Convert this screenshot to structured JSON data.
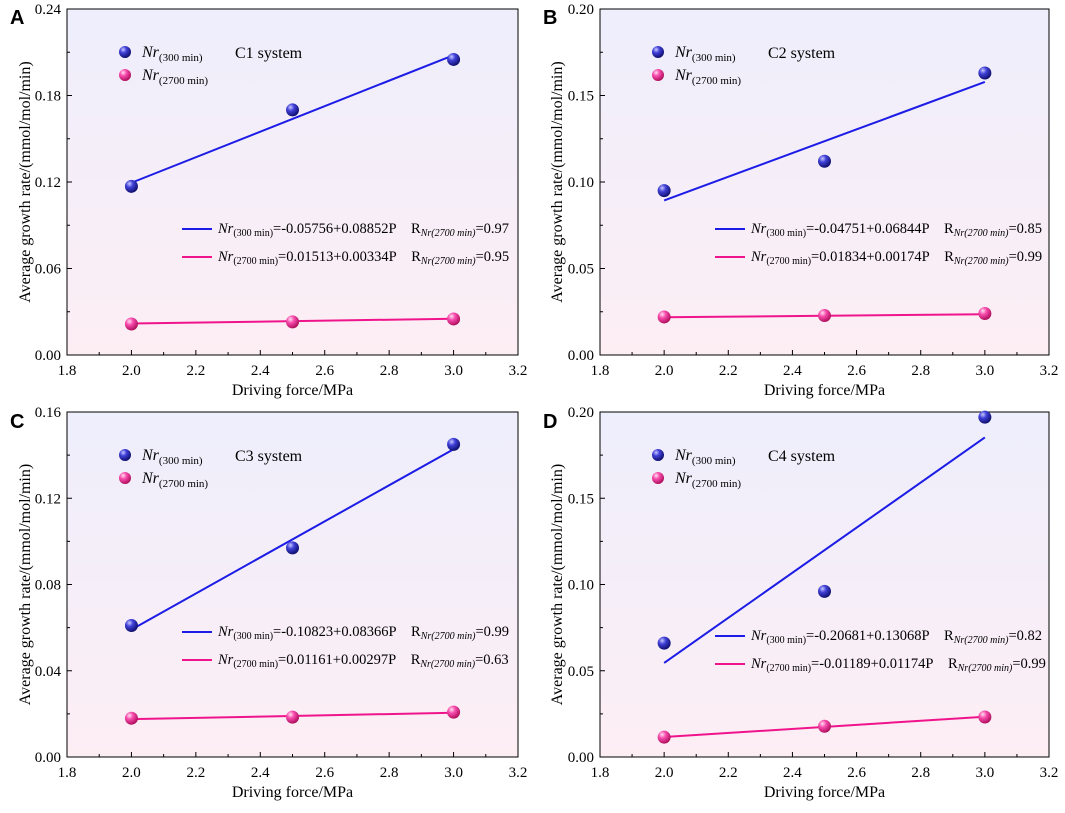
{
  "colors": {
    "blue_line": "#1c1ce6",
    "blue_marker": "#2b2bb8",
    "pink_line": "#f0148c",
    "pink_marker": "#f53ca5",
    "bg_top": "#eeeefc",
    "bg_bottom": "#fdeef4"
  },
  "chart_data": [
    {
      "type": "scatter",
      "panel": "A",
      "system_label": "C1 system",
      "xlabel": "Driving force/MPa",
      "ylabel": "Average growth rate/(mmol/mol/min)",
      "xlim": [
        1.8,
        3.2
      ],
      "ylim": [
        0,
        0.24
      ],
      "xticks": [
        "1.8",
        "2.0",
        "2.2",
        "2.4",
        "2.6",
        "2.8",
        "3.0",
        "3.2"
      ],
      "yticks": [
        "0.00",
        "0.06",
        "0.12",
        "0.18",
        "0.24"
      ],
      "series": [
        {
          "name": "Nr(300 min)",
          "name_main": "Nr",
          "name_sub": "(300 min)",
          "color": "blue",
          "x": [
            2.0,
            2.5,
            3.0
          ],
          "y": [
            0.117,
            0.17,
            0.205
          ],
          "fit": {
            "intercept": -0.05756,
            "slope": 0.08852
          },
          "eq_main": "Nr",
          "eq_sub": "(300 min)",
          "eq_rhs": "=-0.05756+0.08852P",
          "r_main": "R",
          "r_sub": "Nr(2700 min)",
          "r_val": "=0.97"
        },
        {
          "name": "Nr(2700 min)",
          "name_main": "Nr",
          "name_sub": "(2700 min)",
          "color": "pink",
          "x": [
            2.0,
            2.5,
            3.0
          ],
          "y": [
            0.0215,
            0.023,
            0.025
          ],
          "fit": {
            "intercept": 0.01513,
            "slope": 0.00334
          },
          "eq_main": "Nr",
          "eq_sub": "(2700 min)",
          "eq_rhs": "=0.01513+0.00334P",
          "r_main": "R",
          "r_sub": "Nr(2700 min)",
          "r_val": "=0.95"
        }
      ]
    },
    {
      "type": "scatter",
      "panel": "B",
      "system_label": "C2 system",
      "xlabel": "Driving force/MPa",
      "ylabel": "Average growth rate/(mmol/mol/min)",
      "xlim": [
        1.8,
        3.2
      ],
      "ylim": [
        0,
        0.2
      ],
      "xticks": [
        "1.8",
        "2.0",
        "2.2",
        "2.4",
        "2.6",
        "2.8",
        "3.0",
        "3.2"
      ],
      "yticks": [
        "0.00",
        "0.05",
        "0.10",
        "0.15",
        "0.20"
      ],
      "series": [
        {
          "name": "Nr(300 min)",
          "name_main": "Nr",
          "name_sub": "(300 min)",
          "color": "blue",
          "x": [
            2.0,
            2.5,
            3.0
          ],
          "y": [
            0.095,
            0.112,
            0.163
          ],
          "fit": {
            "intercept": -0.04751,
            "slope": 0.06844
          },
          "eq_main": "Nr",
          "eq_sub": "(300 min)",
          "eq_rhs": "=-0.04751+0.06844P",
          "r_main": "R",
          "r_sub": "Nr(2700 min)",
          "r_val": "=0.85"
        },
        {
          "name": "Nr(2700 min)",
          "name_main": "Nr",
          "name_sub": "(2700 min)",
          "color": "pink",
          "x": [
            2.0,
            2.5,
            3.0
          ],
          "y": [
            0.022,
            0.0228,
            0.024
          ],
          "fit": {
            "intercept": 0.01834,
            "slope": 0.00174
          },
          "eq_main": "Nr",
          "eq_sub": "(2700 min)",
          "eq_rhs": "=0.01834+0.00174P",
          "r_main": "R",
          "r_sub": "Nr(2700 min)",
          "r_val": "=0.99"
        }
      ]
    },
    {
      "type": "scatter",
      "panel": "C",
      "system_label": "C3 system",
      "xlabel": "Driving force/MPa",
      "ylabel": "Average growth rate/(mmol/mol/min)",
      "xlim": [
        1.8,
        3.2
      ],
      "ylim": [
        0,
        0.16
      ],
      "xticks": [
        "1.8",
        "2.0",
        "2.2",
        "2.4",
        "2.6",
        "2.8",
        "3.0",
        "3.2"
      ],
      "yticks": [
        "0.00",
        "0.04",
        "0.08",
        "0.12",
        "0.16"
      ],
      "series": [
        {
          "name": "Nr(300 min)",
          "name_main": "Nr",
          "name_sub": "(300 min)",
          "color": "blue",
          "x": [
            2.0,
            2.5,
            3.0
          ],
          "y": [
            0.061,
            0.097,
            0.145
          ],
          "fit": {
            "intercept": -0.10823,
            "slope": 0.08366
          },
          "eq_main": "Nr",
          "eq_sub": "(300 min)",
          "eq_rhs": "=-0.10823+0.08366P",
          "r_main": "R",
          "r_sub": "Nr(2700 min)",
          "r_val": "=0.99"
        },
        {
          "name": "Nr(2700 min)",
          "name_main": "Nr",
          "name_sub": "(2700 min)",
          "color": "pink",
          "x": [
            2.0,
            2.5,
            3.0
          ],
          "y": [
            0.018,
            0.0185,
            0.0208
          ],
          "fit": {
            "intercept": 0.01161,
            "slope": 0.00297
          },
          "eq_main": "Nr",
          "eq_sub": "(2700 min)",
          "eq_rhs": "=0.01161+0.00297P",
          "r_main": "R",
          "r_sub": "Nr(2700 min)",
          "r_val": "=0.63"
        }
      ]
    },
    {
      "type": "scatter",
      "panel": "D",
      "system_label": "C4 system",
      "xlabel": "Driving force/MPa",
      "ylabel": "Average growth rate/(mmol/mol/min)",
      "xlim": [
        1.8,
        3.2
      ],
      "ylim": [
        0,
        0.2
      ],
      "xticks": [
        "1.8",
        "2.0",
        "2.2",
        "2.4",
        "2.6",
        "2.8",
        "3.0",
        "3.2"
      ],
      "yticks": [
        "0.00",
        "0.05",
        "0.10",
        "0.15",
        "0.20"
      ],
      "series": [
        {
          "name": "Nr(300 min)",
          "name_main": "Nr",
          "name_sub": "(300 min)",
          "color": "blue",
          "x": [
            2.0,
            2.5,
            3.0
          ],
          "y": [
            0.066,
            0.096,
            0.197
          ],
          "fit": {
            "intercept": -0.20681,
            "slope": 0.13068
          },
          "eq_main": "Nr",
          "eq_sub": "(300 min)",
          "eq_rhs": "=-0.20681+0.13068P",
          "r_main": "R",
          "r_sub": "Nr(2700 min)",
          "r_val": "=0.82"
        },
        {
          "name": "Nr(2700 min)",
          "name_main": "Nr",
          "name_sub": "(2700 min)",
          "color": "pink",
          "x": [
            2.0,
            2.5,
            3.0
          ],
          "y": [
            0.0115,
            0.0178,
            0.0232
          ],
          "fit": {
            "intercept": -0.01189,
            "slope": 0.01174
          },
          "eq_main": "Nr",
          "eq_sub": "(2700 min)",
          "eq_rhs": "=-0.01189+0.01174P",
          "r_main": "R",
          "r_sub": "Nr(2700 min)",
          "r_val": "=0.99"
        }
      ]
    }
  ]
}
